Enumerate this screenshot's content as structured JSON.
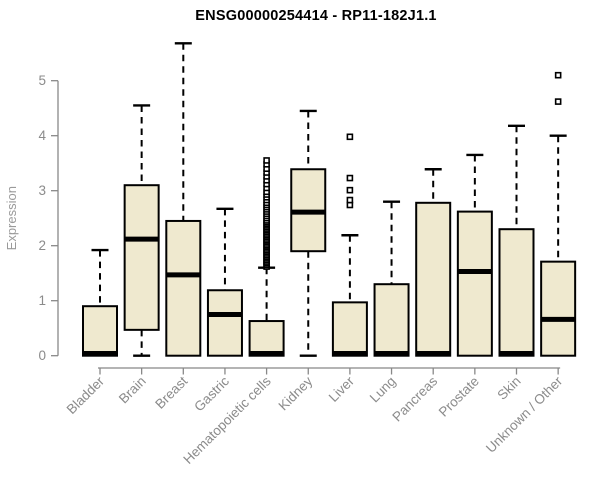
{
  "title": "ENSG00000254414 - RP11-182J1.1",
  "chart_data": {
    "type": "boxplot",
    "title": "ENSG00000254414 - RP11-182J1.1",
    "xlabel": "",
    "ylabel": "Expression",
    "ylim": [
      0,
      5.7
    ],
    "yticks": [
      0,
      1,
      2,
      3,
      4,
      5
    ],
    "grid": false,
    "legend": "none",
    "categories": [
      "Bladder",
      "Brain",
      "Breast",
      "Gastric",
      "Hematopoietic cells",
      "Kidney",
      "Liver",
      "Lung",
      "Pancreas",
      "Prostate",
      "Skin",
      "Unknown / Other"
    ],
    "series": [
      {
        "name": "Bladder",
        "whisker_low": 0,
        "q1": 0,
        "median": 0.04,
        "q3": 0.9,
        "whisker_high": 1.92,
        "outliers": []
      },
      {
        "name": "Brain",
        "whisker_low": 0,
        "q1": 0.47,
        "median": 2.12,
        "q3": 3.1,
        "whisker_high": 4.55,
        "outliers": []
      },
      {
        "name": "Breast",
        "whisker_low": 0,
        "q1": 0,
        "median": 1.47,
        "q3": 2.45,
        "whisker_high": 5.68,
        "outliers": []
      },
      {
        "name": "Gastric",
        "whisker_low": 0,
        "q1": 0,
        "median": 0.75,
        "q3": 1.19,
        "whisker_high": 2.67,
        "outliers": []
      },
      {
        "name": "Hematopoietic cells",
        "whisker_low": 0,
        "q1": 0,
        "median": 0.04,
        "q3": 0.63,
        "whisker_high": 1.6,
        "outliers": [
          1.62,
          1.65,
          1.68,
          1.71,
          1.74,
          1.77,
          1.8,
          1.83,
          1.86,
          1.89,
          1.92,
          1.95,
          1.98,
          2.01,
          2.04,
          2.07,
          2.1,
          2.13,
          2.16,
          2.19,
          2.22,
          2.25,
          2.28,
          2.31,
          2.34,
          2.37,
          2.4,
          2.43,
          2.46,
          2.5,
          2.54,
          2.58,
          2.62,
          2.66,
          2.7,
          2.74,
          2.78,
          2.83,
          2.88,
          2.93,
          2.98,
          3.05,
          3.12,
          3.19,
          3.26,
          3.33,
          3.4,
          3.48,
          3.55
        ]
      },
      {
        "name": "Kidney",
        "whisker_low": 0,
        "q1": 1.9,
        "median": 2.61,
        "q3": 3.39,
        "whisker_high": 4.45,
        "outliers": []
      },
      {
        "name": "Liver",
        "whisker_low": 0,
        "q1": 0,
        "median": 0.04,
        "q3": 0.97,
        "whisker_high": 2.19,
        "outliers": [
          2.74,
          2.83,
          3.01,
          3.23,
          3.98
        ]
      },
      {
        "name": "Lung",
        "whisker_low": 0,
        "q1": 0,
        "median": 0.04,
        "q3": 1.3,
        "whisker_high": 2.8,
        "outliers": []
      },
      {
        "name": "Pancreas",
        "whisker_low": 0,
        "q1": 0,
        "median": 0.04,
        "q3": 2.78,
        "whisker_high": 3.39,
        "outliers": []
      },
      {
        "name": "Prostate",
        "whisker_low": 0,
        "q1": 0,
        "median": 1.53,
        "q3": 2.62,
        "whisker_high": 3.65,
        "outliers": []
      },
      {
        "name": "Skin",
        "whisker_low": 0,
        "q1": 0,
        "median": 0.04,
        "q3": 2.3,
        "whisker_high": 4.18,
        "outliers": []
      },
      {
        "name": "Unknown / Other",
        "whisker_low": 0,
        "q1": 0,
        "median": 0.66,
        "q3": 1.71,
        "whisker_high": 4.0,
        "outliers": [
          4.62,
          5.1
        ]
      }
    ],
    "colors": {
      "box_fill": "#EFE9CF",
      "box_stroke": "#000000",
      "median": "#000000",
      "whisker": "#000000",
      "outlier_stroke": "#000000",
      "axis": "#888888",
      "tick_label": "#8b8b8b",
      "axis_label": "#9a9a9a",
      "title": "#000000",
      "background": "#ffffff"
    }
  }
}
